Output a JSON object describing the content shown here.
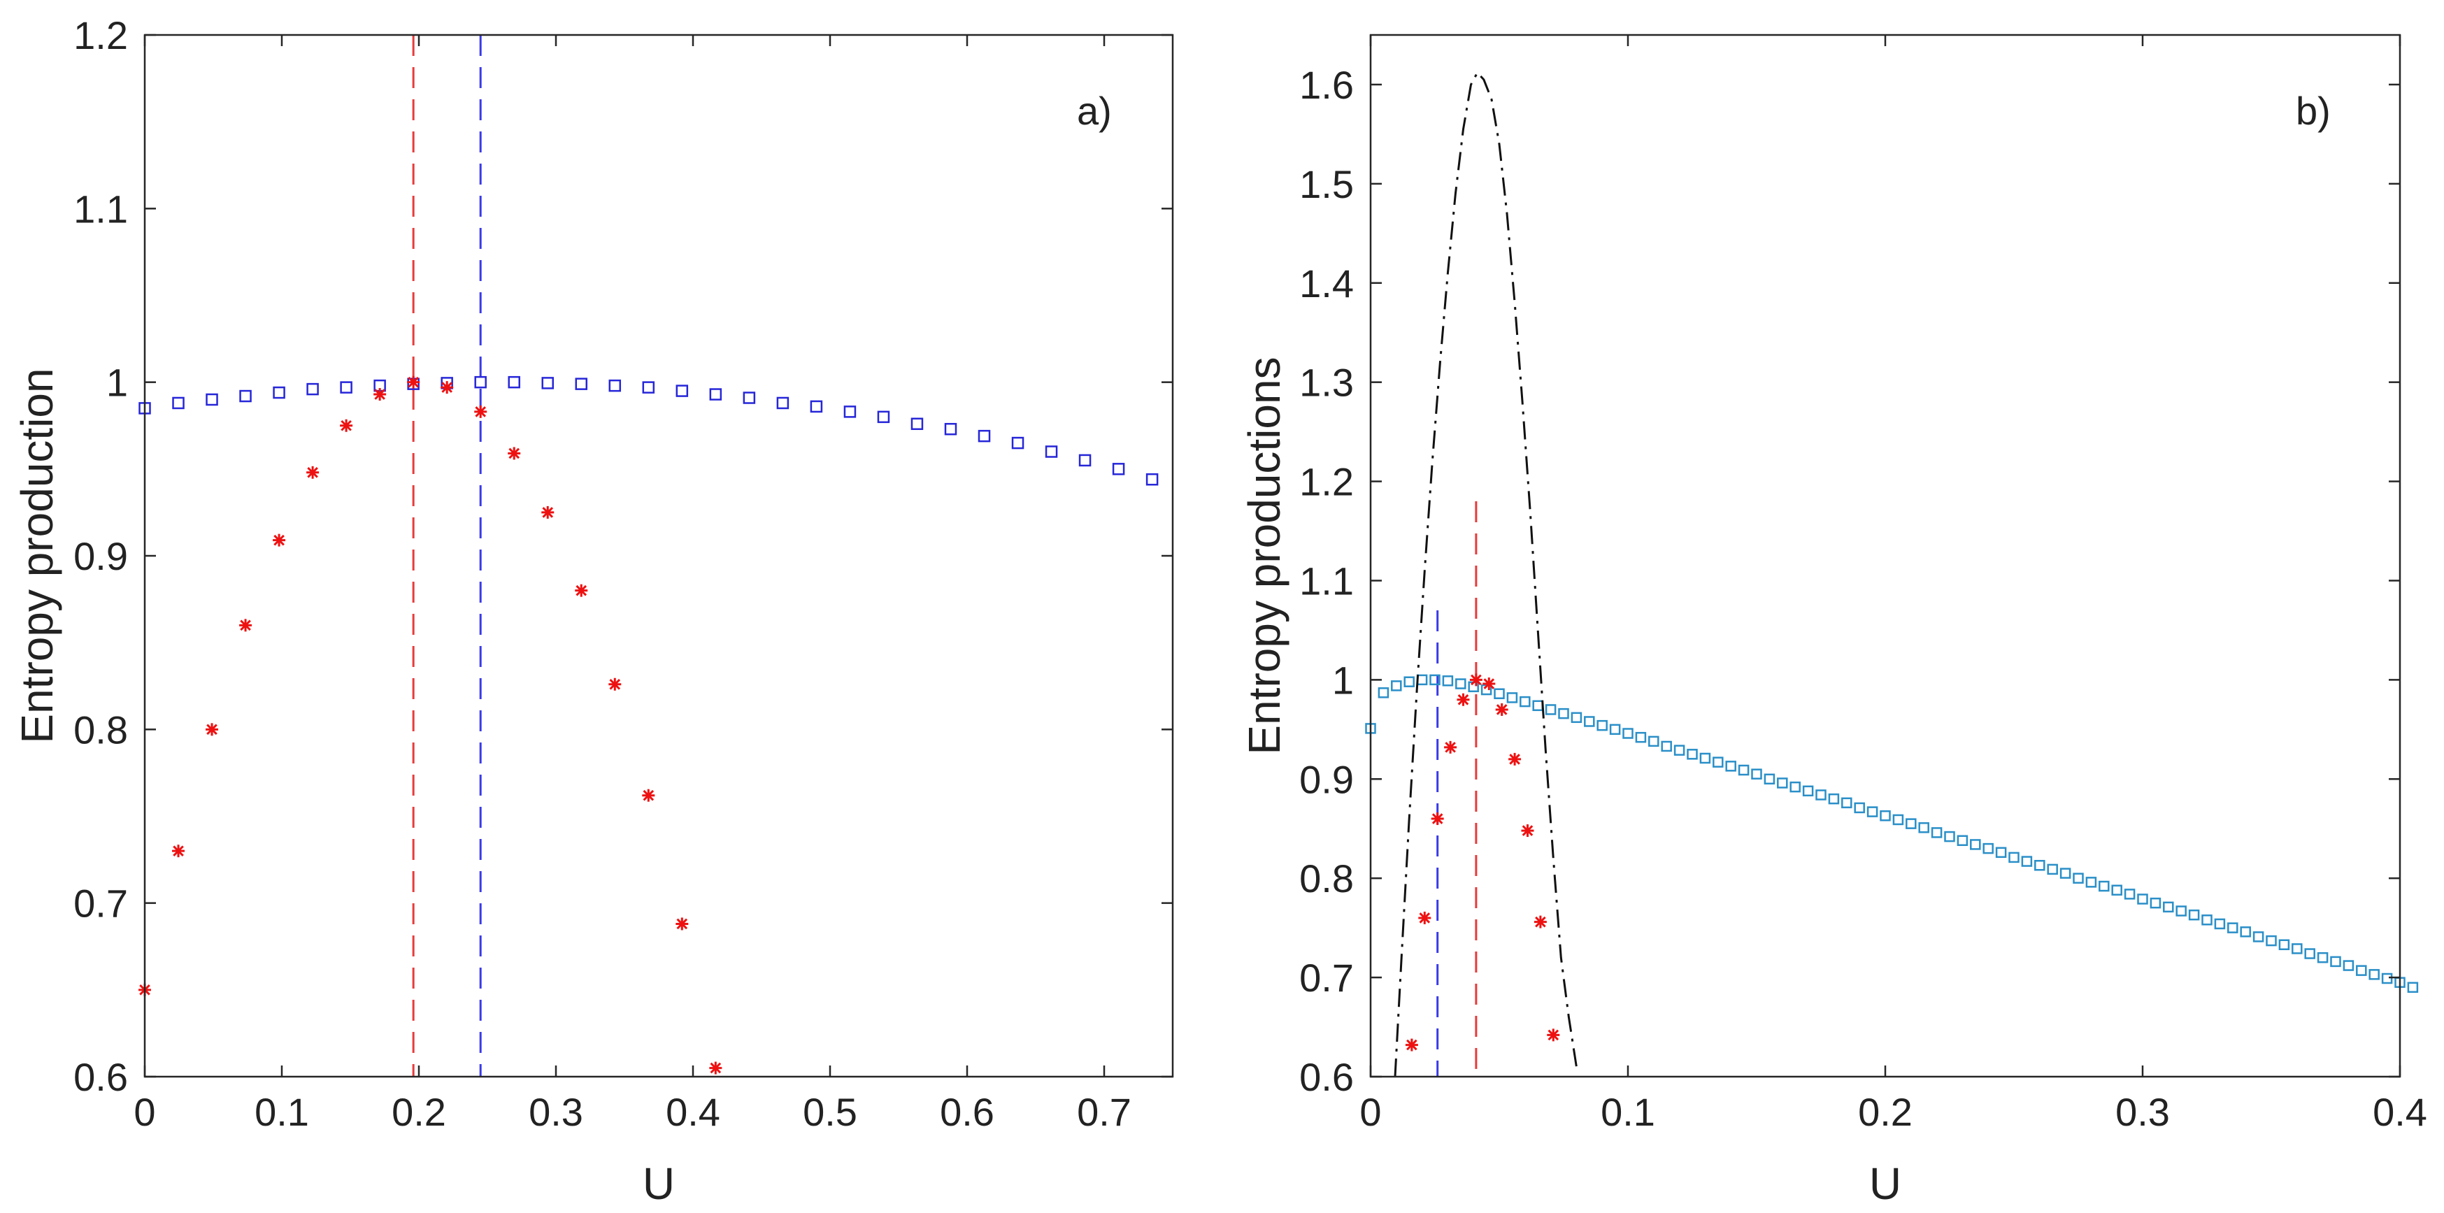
{
  "chart_data": [
    {
      "type": "scatter",
      "panel": "a)",
      "xlabel": "U",
      "ylabel": "Entropy production",
      "xlim": [
        0,
        0.75
      ],
      "ylim": [
        0.6,
        1.2
      ],
      "xticks": [
        0,
        0.1,
        0.2,
        0.3,
        0.4,
        0.5,
        0.6,
        0.7
      ],
      "xtick_labels": [
        "0",
        "0.1",
        "0.2",
        "0.3",
        "0.4",
        "0.5",
        "0.6",
        "0.7"
      ],
      "yticks": [
        0.6,
        0.7,
        0.8,
        0.9,
        1.0,
        1.1,
        1.2
      ],
      "ytick_labels": [
        "0.6",
        "0.7",
        "0.8",
        "0.9",
        "1",
        "1.1",
        "1.2"
      ],
      "grid": false,
      "colors": {
        "squares": "#2626d9",
        "stars": "#ee1111",
        "vline_red": "#e83a3a",
        "vline_blue": "#3a3ae8"
      },
      "series": [
        {
          "name": "squares",
          "marker": "square",
          "x": [
            0,
            0.0245,
            0.049,
            0.0735,
            0.098,
            0.1225,
            0.147,
            0.1715,
            0.196,
            0.2205,
            0.245,
            0.2695,
            0.294,
            0.3185,
            0.343,
            0.3675,
            0.392,
            0.4165,
            0.441,
            0.4655,
            0.49,
            0.5145,
            0.539,
            0.5635,
            0.588,
            0.6125,
            0.637,
            0.6615,
            0.686,
            0.7105,
            0.735
          ],
          "y": [
            0.985,
            0.988,
            0.99,
            0.992,
            0.994,
            0.996,
            0.997,
            0.998,
            0.999,
            0.9995,
            1.0,
            1.0,
            0.9995,
            0.999,
            0.998,
            0.997,
            0.995,
            0.993,
            0.991,
            0.988,
            0.986,
            0.983,
            0.98,
            0.976,
            0.973,
            0.969,
            0.965,
            0.96,
            0.955,
            0.95,
            0.944
          ]
        },
        {
          "name": "stars",
          "marker": "star",
          "x": [
            0,
            0.0245,
            0.049,
            0.0735,
            0.098,
            0.1225,
            0.147,
            0.1715,
            0.196,
            0.2205,
            0.245,
            0.2695,
            0.294,
            0.3185,
            0.343,
            0.3675,
            0.392,
            0.4165
          ],
          "y": [
            0.65,
            0.73,
            0.8,
            0.86,
            0.909,
            0.948,
            0.975,
            0.993,
            1.0,
            0.997,
            0.983,
            0.959,
            0.925,
            0.88,
            0.826,
            0.762,
            0.688,
            0.605
          ]
        }
      ],
      "vlines": [
        {
          "name": "red",
          "x": 0.196,
          "y0": 0.6,
          "y1": 1.2
        },
        {
          "name": "blue",
          "x": 0.245,
          "y0": 0.6,
          "y1": 1.2
        }
      ]
    },
    {
      "type": "scatter",
      "panel": "b)",
      "xlabel": "U",
      "ylabel": "Entropy productions",
      "xlim": [
        0,
        0.4
      ],
      "ylim": [
        0.6,
        1.65
      ],
      "xticks": [
        0,
        0.1,
        0.2,
        0.3,
        0.4
      ],
      "xtick_labels": [
        "0",
        "0.1",
        "0.2",
        "0.3",
        "0.4"
      ],
      "yticks": [
        0.6,
        0.7,
        0.8,
        0.9,
        1.0,
        1.1,
        1.2,
        1.3,
        1.4,
        1.5,
        1.6
      ],
      "ytick_labels": [
        "0.6",
        "0.7",
        "0.8",
        "0.9",
        "1",
        "1.1",
        "1.2",
        "1.3",
        "1.4",
        "1.5",
        "1.6"
      ],
      "grid": false,
      "colors": {
        "squares": "#2a8fc8",
        "stars": "#ee1111",
        "curve": "#111111",
        "vline_red": "#e83a3a",
        "vline_blue": "#3a3ae8"
      },
      "series": [
        {
          "name": "squares",
          "marker": "square",
          "x_start": 0,
          "x_step": 0.005,
          "y": [
            0.951,
            0.987,
            0.994,
            0.998,
            1.0,
            1.0,
            0.999,
            0.996,
            0.993,
            0.99,
            0.986,
            0.982,
            0.978,
            0.974,
            0.97,
            0.966,
            0.962,
            0.958,
            0.954,
            0.95,
            0.946,
            0.942,
            0.938,
            0.933,
            0.929,
            0.925,
            0.921,
            0.917,
            0.913,
            0.909,
            0.905,
            0.9,
            0.896,
            0.892,
            0.888,
            0.884,
            0.88,
            0.876,
            0.871,
            0.867,
            0.863,
            0.859,
            0.855,
            0.851,
            0.846,
            0.842,
            0.838,
            0.834,
            0.83,
            0.826,
            0.821,
            0.817,
            0.813,
            0.809,
            0.805,
            0.8,
            0.796,
            0.792,
            0.788,
            0.784,
            0.779,
            0.775,
            0.771,
            0.767,
            0.763,
            0.758,
            0.754,
            0.75,
            0.746,
            0.741,
            0.737,
            0.733,
            0.729,
            0.724,
            0.72,
            0.716,
            0.712,
            0.707,
            0.703,
            0.699,
            0.695,
            0.69
          ]
        },
        {
          "name": "stars",
          "marker": "star",
          "x": [
            0.016,
            0.021,
            0.026,
            0.031,
            0.036,
            0.041,
            0.046,
            0.051,
            0.056,
            0.061,
            0.066,
            0.071
          ],
          "y": [
            0.632,
            0.76,
            0.86,
            0.932,
            0.98,
            1.0,
            0.996,
            0.97,
            0.92,
            0.848,
            0.756,
            0.642
          ]
        },
        {
          "name": "curve",
          "marker": "dashdot-line",
          "x": [
            0.0095,
            0.012,
            0.015,
            0.018,
            0.021,
            0.024,
            0.027,
            0.03,
            0.033,
            0.036,
            0.039,
            0.0415,
            0.044,
            0.047,
            0.05,
            0.053,
            0.056,
            0.059,
            0.062,
            0.065,
            0.068,
            0.071,
            0.074,
            0.077,
            0.08
          ],
          "y": [
            0.6,
            0.72,
            0.86,
            0.99,
            1.11,
            1.22,
            1.32,
            1.41,
            1.49,
            1.555,
            1.6,
            1.612,
            1.605,
            1.585,
            1.54,
            1.47,
            1.38,
            1.28,
            1.17,
            1.05,
            0.93,
            0.82,
            0.72,
            0.66,
            0.61
          ]
        }
      ],
      "vlines": [
        {
          "name": "blue",
          "x": 0.026,
          "y0": 0.6,
          "y1": 1.07
        },
        {
          "name": "red",
          "x": 0.041,
          "y0": 0.6,
          "y1": 1.18
        }
      ]
    }
  ]
}
